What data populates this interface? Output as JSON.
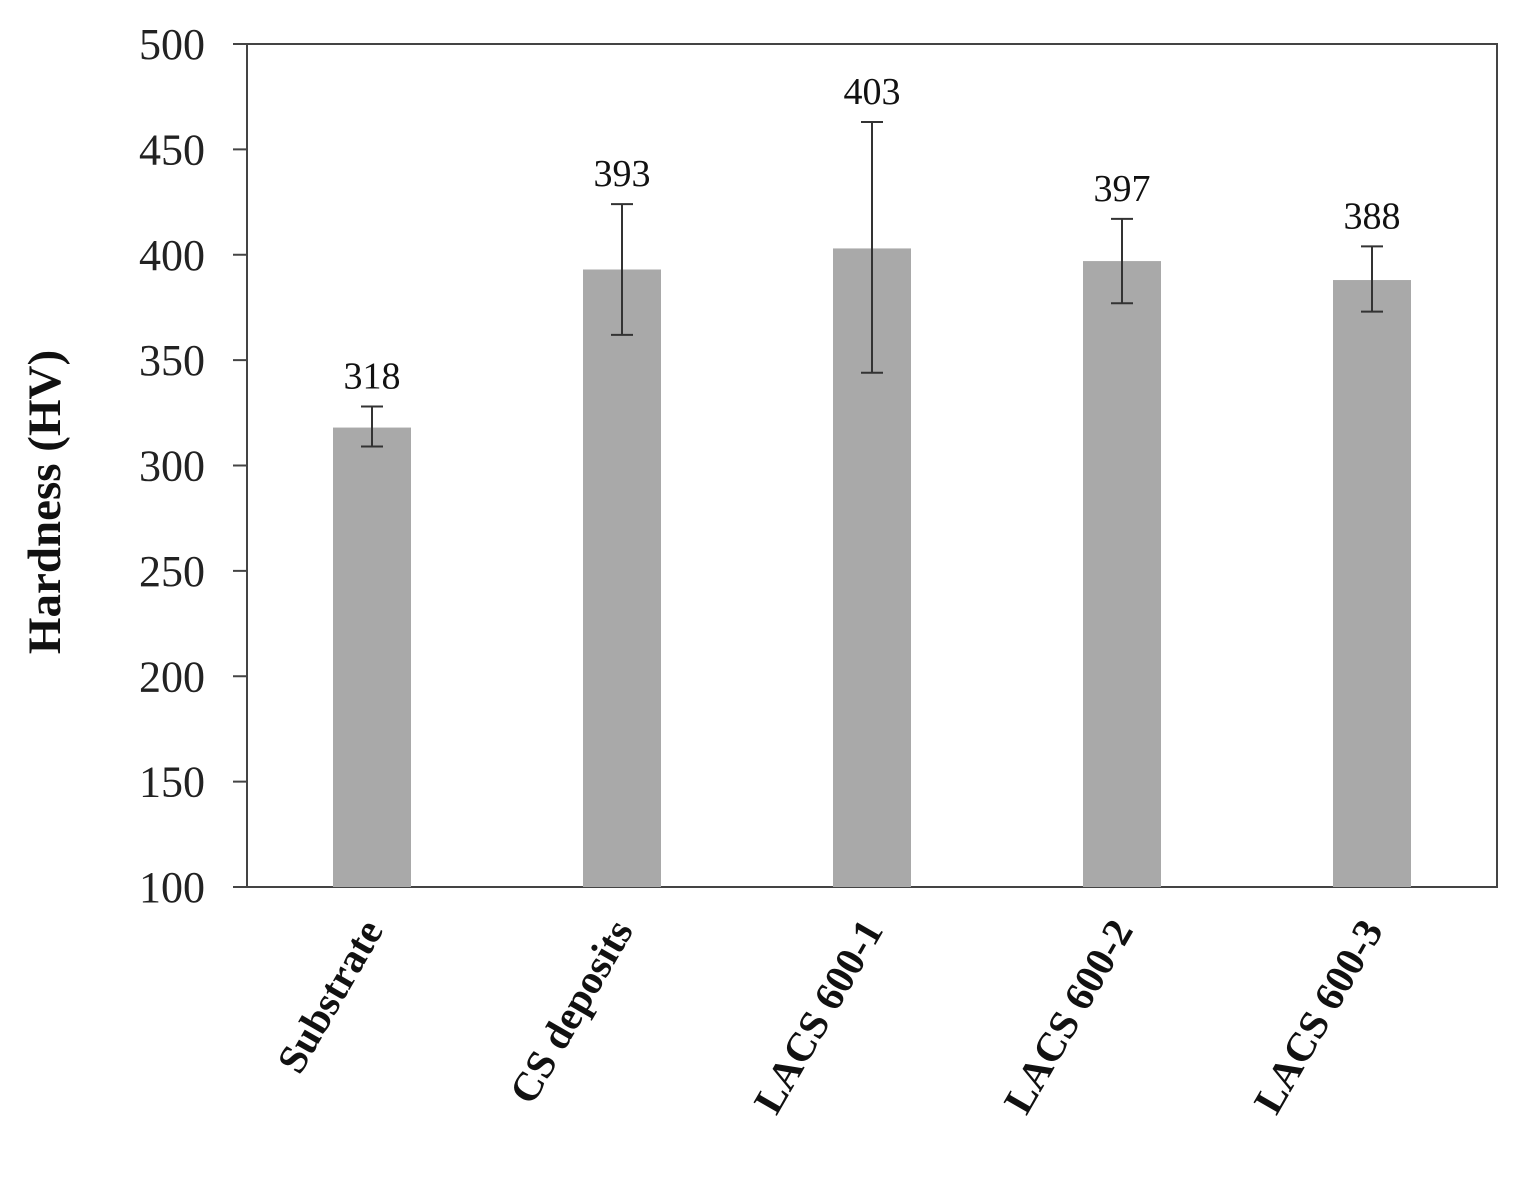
{
  "chart_data": {
    "type": "bar",
    "title": "",
    "xlabel": "",
    "ylabel": "Hardness (HV)",
    "ylim": [
      100,
      500
    ],
    "yticks": [
      "100",
      "150",
      "200",
      "250",
      "300",
      "350",
      "400",
      "450",
      "500"
    ],
    "categories": [
      "Substrate",
      "CS deposits",
      "LACS 600-1",
      "LACS 600-2",
      "LACS 600-3"
    ],
    "values": [
      318,
      393,
      403,
      397,
      388
    ],
    "data_labels": [
      "318",
      "393",
      "403",
      "397",
      "388"
    ],
    "error_low": [
      309,
      362,
      344,
      377,
      373
    ],
    "error_high": [
      328,
      424,
      463,
      417,
      404
    ],
    "grid": false,
    "legend": "none",
    "colors": {
      "bar": "#a9a9a9",
      "axis": "#444444",
      "error_bar": "#333333"
    }
  }
}
